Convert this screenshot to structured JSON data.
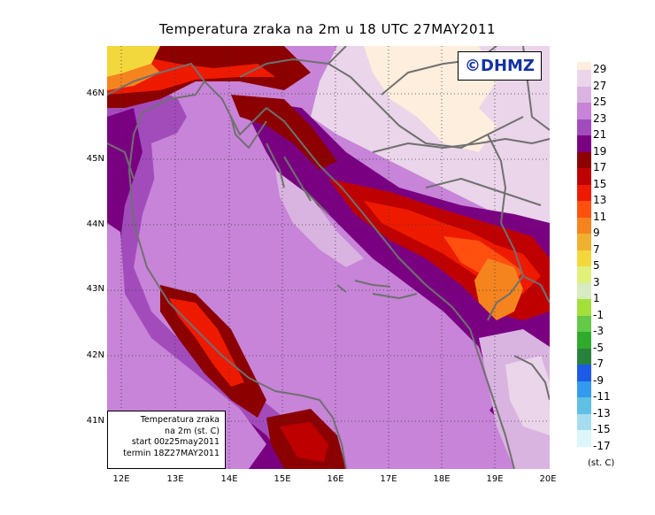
{
  "title": "Temperatura zraka na 2m u 18 UTC 27MAY2011",
  "copyright": "©DHMZ",
  "info_box": {
    "line1": "Temperatura zraka",
    "line2": "na 2m (st. C)",
    "line3": "start 00z25may2011",
    "line4": "termin 18Z27MAY2011"
  },
  "lat_labels": [
    "46N",
    "45N",
    "44N",
    "43N",
    "42N",
    "41N"
  ],
  "lon_labels": [
    "12E",
    "13E",
    "14E",
    "15E",
    "16E",
    "17E",
    "18E",
    "19E",
    "20E"
  ],
  "legend": {
    "unit": "(st. C)",
    "labels": [
      "29",
      "27",
      "25",
      "23",
      "21",
      "19",
      "17",
      "15",
      "13",
      "11",
      "9",
      "7",
      "5",
      "3",
      "1",
      "-1",
      "-3",
      "-5",
      "-7",
      "-9",
      "-11",
      "-13",
      "-15",
      "-17"
    ],
    "colors": [
      "#fdeedd",
      "#ead5ea",
      "#d9b4e0",
      "#c784d8",
      "#a24cbc",
      "#7a0082",
      "#8c0000",
      "#be0000",
      "#ee1a00",
      "#ff5010",
      "#f5841e",
      "#f0b030",
      "#f2d83c",
      "#e0f07a",
      "#d6ebc0",
      "#a3e03a",
      "#64c848",
      "#2faa2c",
      "#28823c",
      "#1e5ae6",
      "#329bf0",
      "#5fc0e4",
      "#a7dcf0",
      "#dcf6fa",
      "#ffffff"
    ]
  },
  "colors": {
    "coastline": "#707070",
    "grid": "#3a3a3a",
    "copyright_text": "#1432a0"
  }
}
